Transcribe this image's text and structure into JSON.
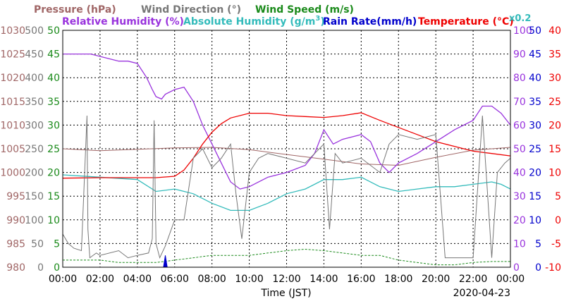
{
  "chart_data": {
    "type": "line",
    "title": "",
    "xlabel": "Time (JST)",
    "date_label": "2020-04-23",
    "x_ticks": [
      "00:00",
      "02:00",
      "04:00",
      "06:00",
      "08:00",
      "10:00",
      "12:00",
      "14:00",
      "16:00",
      "18:00",
      "20:00",
      "22:00",
      "00:00"
    ],
    "legend": {
      "pressure": "Pressure (hPa)",
      "wind_dir": "Wind Direction (°)",
      "wind_speed": "Wind Speed (m/s)",
      "rh": "Relative Humidity (%)",
      "ah_prefix": "Absolute Humidity (g/m",
      "ah_sup": "3",
      "ah_suffix": ")",
      "rain": "Rain Rate(mm/h)",
      "temp": "Temperature (°C)",
      "scale_note": "x0.2"
    },
    "colors": {
      "pressure": "#a06666",
      "wind_dir": "#777777",
      "wind_speed": "#1a8a1a",
      "rh": "#9933dd",
      "ah": "#33bbbb",
      "rain": "#0000cc",
      "temp": "#ee0000"
    },
    "axes": {
      "pressure": {
        "range": [
          980,
          1030
        ],
        "ticks": [
          "1030",
          "1025",
          "1020",
          "1015",
          "1010",
          "1005",
          "1000",
          "995",
          "990",
          "985",
          "980"
        ]
      },
      "wind_dir": {
        "range": [
          0,
          500
        ],
        "ticks": [
          "500",
          "450",
          "400",
          "350",
          "300",
          "250",
          "200",
          "150",
          "100",
          "50",
          "0"
        ]
      },
      "wind_speed": {
        "range": [
          0,
          50
        ],
        "ticks": [
          "50",
          "45",
          "40",
          "35",
          "30",
          "25",
          "20",
          "15",
          "10",
          "5",
          "0"
        ]
      },
      "rh": {
        "range": [
          0,
          100
        ],
        "ticks": [
          "100",
          "90",
          "80",
          "70",
          "60",
          "50",
          "40",
          "30",
          "20",
          "10",
          "0"
        ]
      },
      "rain": {
        "range": [
          0,
          50
        ],
        "ticks": [
          "50",
          "45",
          "40",
          "35",
          "30",
          "25",
          "20",
          "15",
          "10",
          "5",
          "0"
        ]
      },
      "temp": {
        "range": [
          -10,
          40
        ],
        "ticks": [
          "40",
          "35",
          "30",
          "25",
          "20",
          "15",
          "10",
          "5",
          "0",
          "-5",
          "-10"
        ]
      }
    },
    "series": [
      {
        "name": "Pressure (hPa)",
        "key": "pressure",
        "axis": "pressure",
        "x": [
          0,
          2,
          4,
          6,
          8,
          10,
          12,
          14,
          16,
          18,
          20,
          22,
          24
        ],
        "y": [
          1005.0,
          1004.6,
          1004.9,
          1005.2,
          1005.3,
          1004.8,
          1003.8,
          1002.8,
          1001.8,
          1001.5,
          1003.2,
          1004.7,
          1005.3
        ]
      },
      {
        "name": "Relative Humidity (%)",
        "key": "rh",
        "axis": "rh",
        "x": [
          0,
          1,
          1.5,
          2,
          3,
          3.5,
          4,
          4.5,
          4.8,
          5,
          5.3,
          5.5,
          6,
          6.5,
          7,
          7.5,
          8,
          8.5,
          9,
          9.5,
          10,
          11,
          12,
          13,
          13.5,
          14,
          14.5,
          15,
          16,
          16.5,
          17,
          17.5,
          18,
          19,
          20,
          21,
          22,
          22.5,
          23,
          23.5,
          24
        ],
        "y": [
          90,
          90,
          90,
          89,
          87,
          87,
          86,
          80,
          75,
          72,
          71,
          73,
          75,
          76,
          70,
          60,
          52,
          44,
          36,
          33,
          34,
          38,
          40,
          43,
          48,
          58,
          52,
          54,
          56,
          53,
          44,
          40,
          44,
          48,
          53,
          58,
          62,
          68,
          68,
          65,
          60
        ]
      },
      {
        "name": "Absolute Humidity (g/m3)",
        "key": "ah",
        "axis": "rh",
        "x": [
          0,
          2,
          4,
          5,
          6,
          7,
          8,
          9,
          10,
          11,
          12,
          13,
          14,
          15,
          16,
          17,
          18,
          19,
          20,
          21,
          22,
          23,
          23.5,
          24
        ],
        "y": [
          39,
          38,
          37,
          32,
          33,
          31,
          27,
          24,
          24,
          27,
          31,
          33,
          37,
          37,
          38,
          34,
          32,
          33,
          34,
          34,
          35,
          36,
          35,
          33
        ]
      },
      {
        "name": "Temperature (°C)",
        "key": "temp",
        "axis": "temp",
        "x": [
          0,
          2,
          4,
          5,
          6,
          6.5,
          7,
          7.5,
          8,
          8.5,
          9,
          10,
          11,
          12,
          13,
          14,
          15,
          16,
          17,
          18,
          19,
          20,
          21,
          22,
          23,
          24
        ],
        "y": [
          8.8,
          8.9,
          8.9,
          8.9,
          9.2,
          10.5,
          13.0,
          16.0,
          18.5,
          20.3,
          21.5,
          22.5,
          22.5,
          22.0,
          21.8,
          21.6,
          22.0,
          22.6,
          21.0,
          19.5,
          18.0,
          16.5,
          15.5,
          14.5,
          14.0,
          13.5
        ]
      },
      {
        "name": "Wind Direction (°)",
        "key": "wind_dir",
        "axis": "wind_dir",
        "x": [
          0,
          0.3,
          0.6,
          1,
          1.3,
          1.35,
          1.45,
          1.8,
          2,
          3,
          3.5,
          4,
          4.6,
          4.8,
          4.9,
          5,
          5.2,
          5.5,
          6,
          6.5,
          7,
          7.5,
          8,
          8.5,
          9,
          9.3,
          9.6,
          10,
          10.5,
          11,
          12,
          13,
          14,
          14.3,
          14.6,
          15,
          16,
          17,
          17.5,
          18,
          19,
          20,
          20.5,
          21,
          22,
          22.5,
          23,
          23.3,
          23.7,
          24
        ],
        "y": [
          70,
          50,
          40,
          35,
          320,
          80,
          20,
          30,
          25,
          35,
          20,
          25,
          30,
          60,
          310,
          50,
          20,
          45,
          100,
          100,
          230,
          250,
          210,
          230,
          260,
          150,
          60,
          200,
          230,
          240,
          230,
          220,
          260,
          80,
          240,
          220,
          230,
          200,
          260,
          280,
          270,
          280,
          20,
          20,
          20,
          320,
          20,
          200,
          220,
          230
        ]
      },
      {
        "name": "Wind Speed (m/s)",
        "key": "wind_speed",
        "axis": "wind_speed",
        "x": [
          0,
          1,
          2,
          3,
          4,
          5,
          6,
          7,
          8,
          9,
          10,
          11,
          12,
          13,
          14,
          15,
          16,
          17,
          18,
          19,
          20,
          21,
          22,
          23,
          24
        ],
        "y": [
          1.5,
          1.5,
          1.5,
          1.0,
          1.0,
          1.0,
          1.5,
          2.0,
          2.5,
          2.5,
          2.5,
          3.0,
          3.5,
          3.8,
          3.5,
          3.0,
          2.5,
          2.5,
          1.5,
          1.0,
          0.5,
          0.5,
          1.0,
          1.2,
          1.2
        ]
      },
      {
        "name": "Rain Rate(mm/h)",
        "key": "rain",
        "axis": "rain",
        "x": [
          5.4,
          5.5,
          5.6
        ],
        "y": [
          0,
          2.5,
          0
        ]
      }
    ]
  }
}
